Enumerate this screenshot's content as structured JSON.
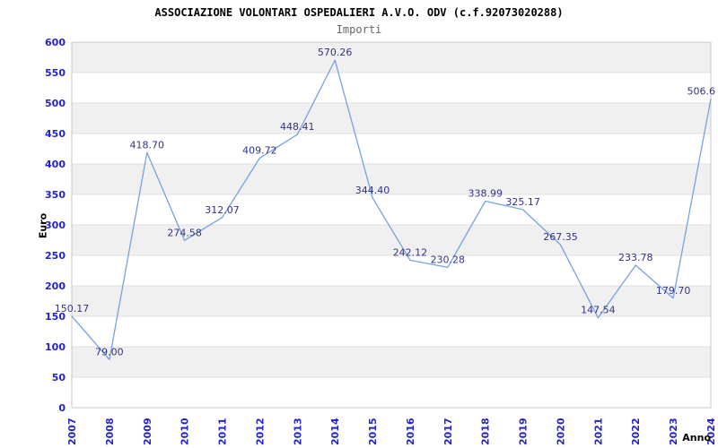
{
  "chart_data": {
    "type": "line",
    "title": "ASSOCIAZIONE VOLONTARI OSPEDALIERI A.V.O. ODV (c.f.92073020288)",
    "subtitle": "Importi",
    "xlabel": "Anno",
    "ylabel": "Euro",
    "categories": [
      "2007",
      "2008",
      "2009",
      "2010",
      "2011",
      "2012",
      "2013",
      "2014",
      "2015",
      "2016",
      "2017",
      "2018",
      "2019",
      "2020",
      "2021",
      "2022",
      "2023",
      "2024"
    ],
    "values": [
      150.17,
      79.0,
      418.7,
      274.58,
      312.07,
      409.72,
      448.41,
      570.26,
      344.4,
      242.12,
      230.28,
      338.99,
      325.17,
      267.35,
      147.54,
      233.78,
      179.7,
      506.6
    ],
    "point_labels": [
      "150.17",
      "79.00",
      "418.70",
      "274.58",
      "312.07",
      "409.72",
      "448.41",
      "570.26",
      "344.40",
      "242.12",
      "230.28",
      "338.99",
      "325.17",
      "267.35",
      "147.54",
      "233.78",
      "179.70",
      "506.6"
    ],
    "ylim": [
      0,
      600
    ],
    "ytick_step": 50,
    "legend_position": "none",
    "grid": "alternating horizontal bands every 50 units, no vertical gridlines",
    "x_tick_rotation": -90,
    "colors": {
      "line": "#76a3dd",
      "point_label": "#333385",
      "tick_label": "#2323cc",
      "band_light": "#ffffff",
      "band_dark": "#f0f0f0",
      "gridline": "#e0e0e0",
      "plot_border": "#c9c9c9",
      "title": "#000000",
      "subtitle": "#666666",
      "axis_title": "#000000",
      "background": "#ffffff"
    }
  }
}
